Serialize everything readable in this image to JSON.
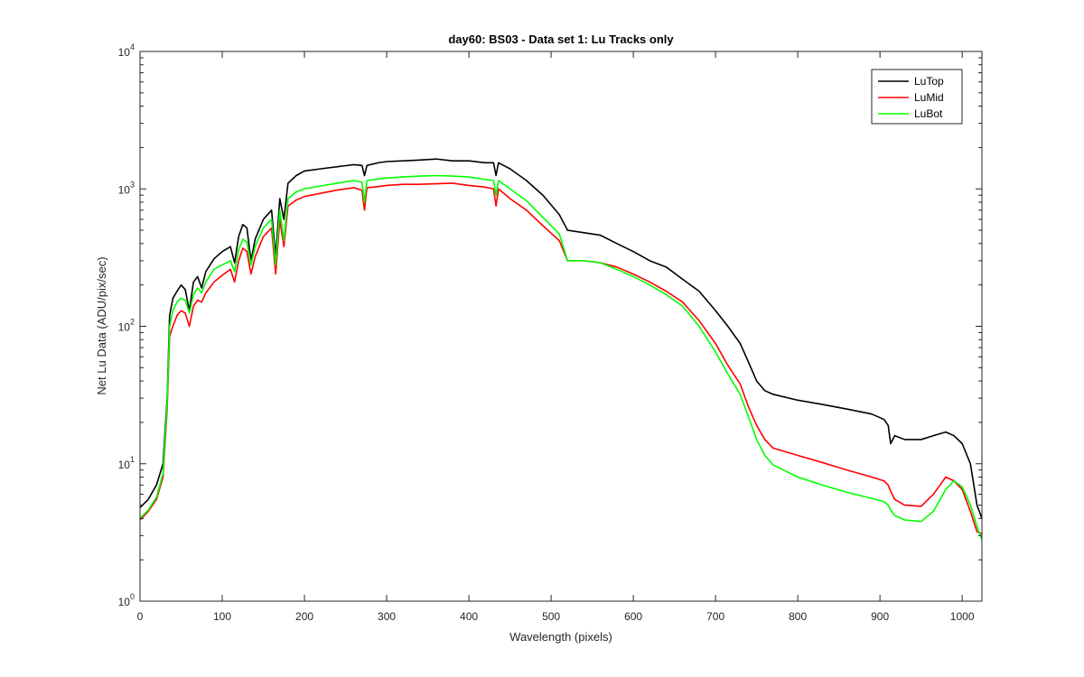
{
  "chart_data": {
    "type": "line",
    "title": "day60: BS03 - Data set 1: Lu Tracks only",
    "xlabel": "Wavelength (pixels)",
    "ylabel": "Net Lu Data (ADU/pix/sec)",
    "xlim": [
      0,
      1024
    ],
    "ylim": [
      1,
      10000
    ],
    "yscale": "log",
    "x_ticks": [
      "0",
      "100",
      "200",
      "300",
      "400",
      "500",
      "600",
      "700",
      "800",
      "900",
      "1000"
    ],
    "y_ticks": [
      {
        "base": "10",
        "exp": "0"
      },
      {
        "base": "10",
        "exp": "1"
      },
      {
        "base": "10",
        "exp": "2"
      },
      {
        "base": "10",
        "exp": "3"
      },
      {
        "base": "10",
        "exp": "4"
      }
    ],
    "grid": false,
    "legend_position": "top-right",
    "series": [
      {
        "name": "LuTop",
        "color": "#000000",
        "x": [
          0,
          10,
          20,
          28,
          33,
          36,
          40,
          45,
          50,
          55,
          60,
          65,
          70,
          75,
          80,
          90,
          100,
          110,
          115,
          120,
          125,
          130,
          135,
          140,
          150,
          160,
          165,
          170,
          175,
          180,
          190,
          200,
          220,
          240,
          260,
          270,
          273,
          276,
          290,
          300,
          320,
          340,
          360,
          380,
          400,
          420,
          430,
          433,
          436,
          450,
          470,
          490,
          510,
          520,
          540,
          560,
          580,
          600,
          620,
          640,
          660,
          680,
          700,
          715,
          730,
          740,
          750,
          760,
          770,
          800,
          830,
          860,
          890,
          905,
          910,
          913,
          918,
          930,
          950,
          965,
          980,
          990,
          1000,
          1010,
          1018,
          1024
        ],
        "y": [
          4.8,
          5.5,
          7,
          10,
          30,
          120,
          160,
          180,
          200,
          185,
          130,
          210,
          230,
          190,
          250,
          310,
          350,
          380,
          290,
          450,
          550,
          520,
          300,
          430,
          600,
          700,
          320,
          850,
          600,
          1100,
          1250,
          1350,
          1400,
          1450,
          1500,
          1480,
          1250,
          1480,
          1550,
          1580,
          1600,
          1620,
          1650,
          1600,
          1600,
          1550,
          1550,
          1250,
          1550,
          1400,
          1150,
          900,
          650,
          500,
          480,
          460,
          400,
          350,
          300,
          270,
          220,
          180,
          130,
          100,
          75,
          55,
          40,
          34,
          32,
          29,
          27,
          25,
          23,
          21,
          19,
          14,
          16,
          15,
          15,
          16,
          17,
          16,
          14,
          10,
          5,
          4
        ]
      },
      {
        "name": "LuMid",
        "color": "#ff0000",
        "x": [
          0,
          10,
          20,
          28,
          33,
          36,
          40,
          45,
          50,
          55,
          60,
          65,
          70,
          75,
          80,
          90,
          100,
          110,
          115,
          120,
          125,
          130,
          135,
          140,
          150,
          160,
          165,
          170,
          175,
          180,
          190,
          200,
          220,
          240,
          260,
          270,
          273,
          276,
          290,
          300,
          320,
          340,
          360,
          380,
          400,
          420,
          430,
          433,
          436,
          450,
          470,
          490,
          510,
          520,
          540,
          560,
          580,
          600,
          620,
          640,
          660,
          680,
          700,
          715,
          730,
          740,
          750,
          760,
          770,
          800,
          830,
          860,
          890,
          905,
          910,
          913,
          918,
          930,
          950,
          965,
          980,
          990,
          1000,
          1010,
          1018,
          1024
        ],
        "y": [
          3.9,
          4.5,
          5.5,
          8,
          25,
          85,
          100,
          120,
          130,
          125,
          100,
          140,
          155,
          150,
          175,
          210,
          235,
          260,
          210,
          300,
          370,
          350,
          240,
          320,
          450,
          520,
          240,
          600,
          380,
          750,
          830,
          880,
          930,
          980,
          1020,
          980,
          700,
          1020,
          1040,
          1060,
          1080,
          1080,
          1090,
          1100,
          1060,
          1030,
          1000,
          750,
          1000,
          850,
          700,
          540,
          420,
          300,
          300,
          290,
          270,
          240,
          210,
          180,
          150,
          110,
          75,
          52,
          38,
          26,
          19,
          15,
          13,
          11.5,
          10.2,
          9,
          8,
          7.5,
          7,
          6.3,
          5.5,
          5,
          4.9,
          6,
          8,
          7.5,
          6.5,
          4.5,
          3.2,
          3.1
        ]
      },
      {
        "name": "LuBot",
        "color": "#00ff00",
        "x": [
          0,
          10,
          20,
          28,
          33,
          36,
          40,
          45,
          50,
          55,
          60,
          65,
          70,
          75,
          80,
          90,
          100,
          110,
          115,
          120,
          125,
          130,
          135,
          140,
          150,
          160,
          165,
          170,
          175,
          180,
          190,
          200,
          220,
          240,
          260,
          270,
          273,
          276,
          290,
          300,
          320,
          340,
          360,
          380,
          400,
          420,
          430,
          433,
          436,
          450,
          470,
          490,
          510,
          520,
          540,
          560,
          580,
          600,
          620,
          640,
          660,
          680,
          700,
          715,
          730,
          740,
          750,
          760,
          770,
          800,
          830,
          860,
          890,
          905,
          910,
          913,
          918,
          930,
          950,
          965,
          980,
          990,
          1000,
          1010,
          1018,
          1024
        ],
        "y": [
          4,
          4.6,
          5.7,
          8.5,
          28,
          100,
          130,
          150,
          160,
          155,
          125,
          170,
          190,
          175,
          210,
          260,
          280,
          300,
          250,
          360,
          430,
          410,
          280,
          380,
          520,
          600,
          280,
          700,
          420,
          850,
          950,
          1000,
          1050,
          1100,
          1150,
          1120,
          800,
          1150,
          1180,
          1200,
          1220,
          1240,
          1250,
          1240,
          1220,
          1170,
          1150,
          900,
          1150,
          1000,
          820,
          620,
          470,
          300,
          300,
          290,
          260,
          230,
          200,
          170,
          140,
          100,
          65,
          45,
          32,
          22,
          15,
          11.5,
          9.8,
          8,
          7,
          6.2,
          5.6,
          5.3,
          5,
          4.6,
          4.2,
          3.9,
          3.8,
          4.5,
          6.5,
          7.5,
          6.8,
          5,
          3.5,
          2.8
        ]
      }
    ]
  }
}
